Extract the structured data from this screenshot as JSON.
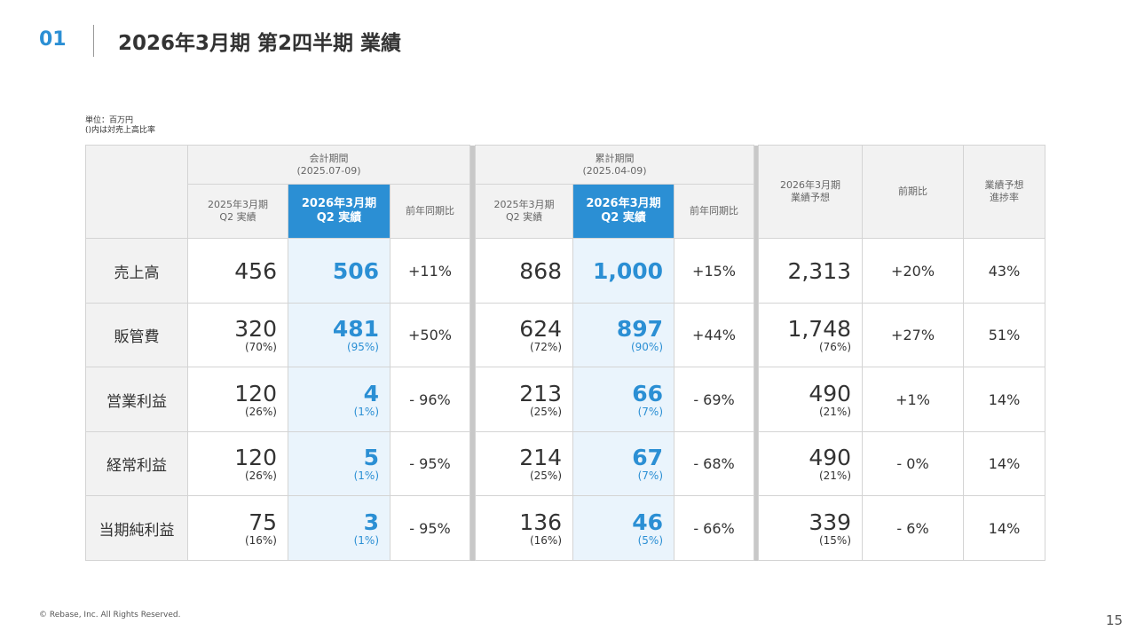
{
  "header": {
    "number": "01",
    "title": "2026年3月期 第2四半期 業績"
  },
  "notes": [
    "単位：百万円",
    "()内は対売上高比率"
  ],
  "table": {
    "groups": [
      {
        "title": "会計期間",
        "period": "(2025.07-09)"
      },
      {
        "title": "累計期間",
        "period": "(2025.04-09)"
      }
    ],
    "subheaders": [
      "2025年3月期\nQ2 実績",
      "2026年3月期\nQ2 実績",
      "前年同期比"
    ],
    "forecast_headers": [
      "2026年3月期\n業績予想",
      "前期比",
      "業績予想\n進捗率"
    ],
    "rows": [
      {
        "label": "売上高",
        "cells": [
          {
            "value": "456"
          },
          {
            "value": "506"
          },
          {
            "value": "+11%"
          },
          {
            "value": "868"
          },
          {
            "value": "1,000"
          },
          {
            "value": "+15%"
          },
          {
            "value": "2,313"
          },
          {
            "value": "+20%"
          },
          {
            "value": "43%"
          }
        ]
      },
      {
        "label": "販管費",
        "cells": [
          {
            "value": "320",
            "ratio": "(70%)"
          },
          {
            "value": "481",
            "ratio": "(95%)"
          },
          {
            "value": "+50%"
          },
          {
            "value": "624",
            "ratio": "(72%)"
          },
          {
            "value": "897",
            "ratio": "(90%)"
          },
          {
            "value": "+44%"
          },
          {
            "value": "1,748",
            "ratio": "(76%)"
          },
          {
            "value": "+27%"
          },
          {
            "value": "51%"
          }
        ]
      },
      {
        "label": "営業利益",
        "cells": [
          {
            "value": "120",
            "ratio": "(26%)"
          },
          {
            "value": "4",
            "ratio": "(1%)"
          },
          {
            "value": "- 96%"
          },
          {
            "value": "213",
            "ratio": "(25%)"
          },
          {
            "value": "66",
            "ratio": "(7%)"
          },
          {
            "value": "- 69%"
          },
          {
            "value": "490",
            "ratio": "(21%)"
          },
          {
            "value": "+1%"
          },
          {
            "value": "14%"
          }
        ]
      },
      {
        "label": "経常利益",
        "cells": [
          {
            "value": "120",
            "ratio": "(26%)"
          },
          {
            "value": "5",
            "ratio": "(1%)"
          },
          {
            "value": "- 95%"
          },
          {
            "value": "214",
            "ratio": "(25%)"
          },
          {
            "value": "67",
            "ratio": "(7%)"
          },
          {
            "value": "- 68%"
          },
          {
            "value": "490",
            "ratio": "(21%)"
          },
          {
            "value": "- 0%"
          },
          {
            "value": "14%"
          }
        ]
      },
      {
        "label": "当期純利益",
        "cells": [
          {
            "value": "75",
            "ratio": "(16%)"
          },
          {
            "value": "3",
            "ratio": "(1%)"
          },
          {
            "value": "- 95%"
          },
          {
            "value": "136",
            "ratio": "(16%)"
          },
          {
            "value": "46",
            "ratio": "(5%)"
          },
          {
            "value": "- 66%"
          },
          {
            "value": "339",
            "ratio": "(15%)"
          },
          {
            "value": "- 6%"
          },
          {
            "value": "14%"
          }
        ]
      }
    ]
  },
  "footer": {
    "copyright": "© Rebase, Inc. All Rights Reserved.",
    "page": "15"
  }
}
